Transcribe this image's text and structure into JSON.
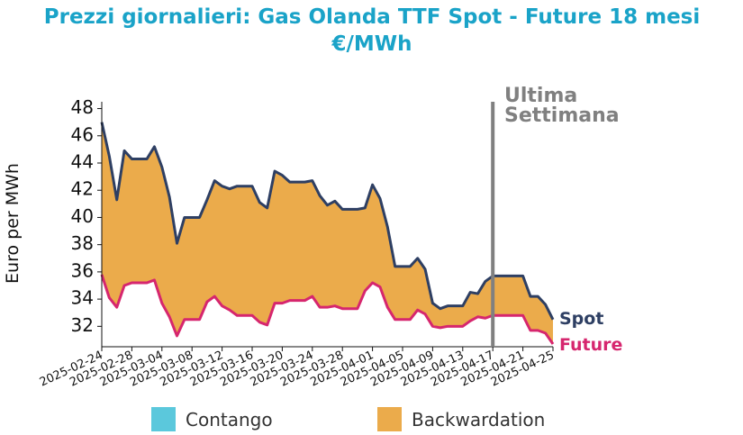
{
  "chart_data": {
    "type": "line",
    "title": "Prezzi giornalieri: Gas Olanda TTF Spot - Future 18 mesi",
    "subtitle": "€/MWh",
    "xlabel": "",
    "ylabel": "Euro per MWh",
    "ylim": [
      30.5,
      48.5
    ],
    "yticks": [
      32,
      34,
      36,
      38,
      40,
      42,
      44,
      46,
      48
    ],
    "xtick_labels": [
      "2025-02-24",
      "2025-02-28",
      "2025-03-04",
      "2025-03-08",
      "2025-03-12",
      "2025-03-16",
      "2025-03-20",
      "2025-03-24",
      "2025-03-28",
      "2025-04-01",
      "2025-04-05",
      "2025-04-09",
      "2025-04-13",
      "2025-04-17",
      "2025-04-21",
      "2025-04-25"
    ],
    "x": [
      "2025-02-24",
      "2025-02-25",
      "2025-02-26",
      "2025-02-27",
      "2025-02-28",
      "2025-03-01",
      "2025-03-02",
      "2025-03-03",
      "2025-03-04",
      "2025-03-05",
      "2025-03-06",
      "2025-03-07",
      "2025-03-08",
      "2025-03-09",
      "2025-03-10",
      "2025-03-11",
      "2025-03-12",
      "2025-03-13",
      "2025-03-14",
      "2025-03-15",
      "2025-03-16",
      "2025-03-17",
      "2025-03-18",
      "2025-03-19",
      "2025-03-20",
      "2025-03-21",
      "2025-03-22",
      "2025-03-23",
      "2025-03-24",
      "2025-03-25",
      "2025-03-26",
      "2025-03-27",
      "2025-03-28",
      "2025-03-29",
      "2025-03-30",
      "2025-03-31",
      "2025-04-01",
      "2025-04-02",
      "2025-04-03",
      "2025-04-04",
      "2025-04-05",
      "2025-04-06",
      "2025-04-07",
      "2025-04-08",
      "2025-04-09",
      "2025-04-10",
      "2025-04-11",
      "2025-04-12",
      "2025-04-13",
      "2025-04-14",
      "2025-04-15",
      "2025-04-16",
      "2025-04-17",
      "2025-04-18",
      "2025-04-19",
      "2025-04-20",
      "2025-04-21",
      "2025-04-22",
      "2025-04-23",
      "2025-04-24",
      "2025-04-25"
    ],
    "series": [
      {
        "name": "Spot",
        "color": "#2e3f63",
        "values": [
          47.0,
          44.5,
          41.3,
          44.9,
          44.3,
          44.3,
          44.3,
          45.2,
          43.7,
          41.5,
          38.1,
          40.0,
          40.0,
          40.0,
          41.3,
          42.7,
          42.3,
          42.1,
          42.3,
          42.3,
          42.3,
          41.1,
          40.7,
          43.4,
          43.1,
          42.6,
          42.6,
          42.6,
          42.7,
          41.6,
          40.9,
          41.2,
          40.6,
          40.6,
          40.6,
          40.7,
          42.4,
          41.4,
          39.3,
          36.4,
          36.4,
          36.4,
          37.0,
          36.2,
          33.7,
          33.3,
          33.5,
          33.5,
          33.5,
          34.5,
          34.4,
          35.3,
          35.7,
          35.7,
          35.7,
          35.7,
          35.7,
          34.2,
          34.2,
          33.6,
          32.5
        ]
      },
      {
        "name": "Future",
        "color": "#d6266e",
        "values": [
          35.8,
          34.1,
          33.4,
          35.0,
          35.2,
          35.2,
          35.2,
          35.4,
          33.7,
          32.7,
          31.3,
          32.5,
          32.5,
          32.5,
          33.8,
          34.2,
          33.5,
          33.2,
          32.8,
          32.8,
          32.8,
          32.3,
          32.1,
          33.7,
          33.7,
          33.9,
          33.9,
          33.9,
          34.2,
          33.4,
          33.4,
          33.5,
          33.3,
          33.3,
          33.3,
          34.6,
          35.2,
          34.9,
          33.4,
          32.5,
          32.5,
          32.5,
          33.2,
          32.9,
          32.0,
          31.9,
          32.0,
          32.0,
          32.0,
          32.4,
          32.7,
          32.6,
          32.8,
          32.8,
          32.8,
          32.8,
          32.8,
          31.7,
          31.7,
          31.5,
          30.7
        ]
      }
    ],
    "annotation": {
      "x": "2025-04-17",
      "label_line1": "Ultima",
      "label_line2": "Settimana"
    },
    "fill_colors": {
      "contango": "#5bc8dc",
      "backwardation": "#ebab4b"
    },
    "legend": [
      {
        "label": "Contango",
        "color": "#5bc8dc"
      },
      {
        "label": "Backwardation",
        "color": "#ebab4b"
      }
    ],
    "legend_position": "bottom",
    "grid": false
  }
}
